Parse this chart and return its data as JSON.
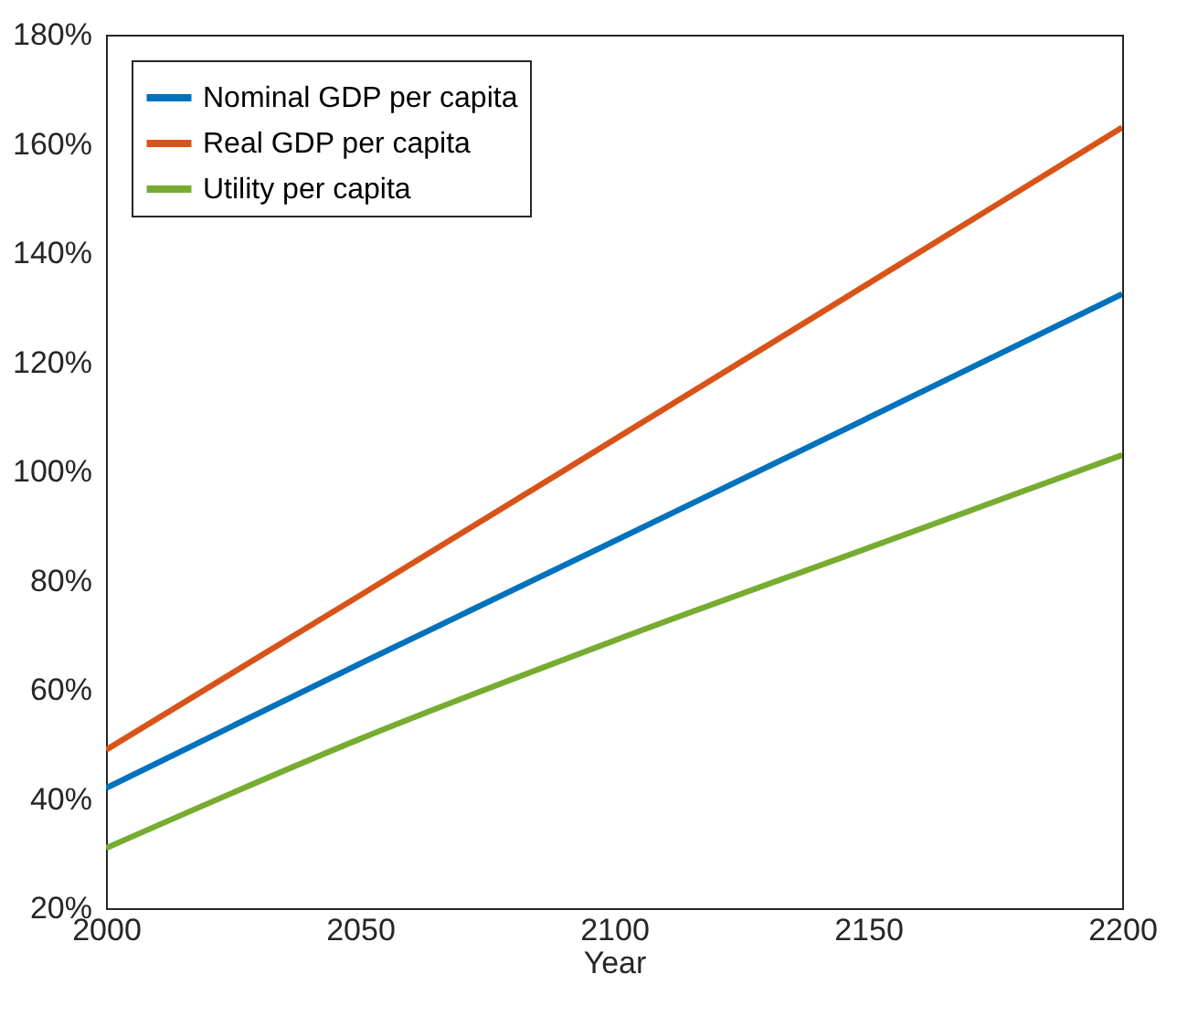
{
  "chart_data": {
    "type": "line",
    "xlabel": "Year",
    "x": [
      2000,
      2050,
      2100,
      2150,
      2200
    ],
    "series": [
      {
        "name": "Nominal GDP per capita",
        "color": "#0072bd",
        "values": [
          42,
          64.8,
          87.2,
          109.8,
          132.5
        ]
      },
      {
        "name": "Real GDP per capita",
        "color": "#d95319",
        "values": [
          49,
          77.3,
          105.8,
          134.4,
          163
        ]
      },
      {
        "name": "Utility per capita",
        "color": "#77ac30",
        "values": [
          31,
          51,
          69,
          86,
          103
        ]
      }
    ],
    "xlim": [
      2000,
      2200
    ],
    "xticks": [
      2000,
      2050,
      2100,
      2150,
      2200
    ],
    "ylim": [
      20,
      180
    ],
    "yticks": [
      {
        "value": 20,
        "label": "20%"
      },
      {
        "value": 40,
        "label": "40%"
      },
      {
        "value": 60,
        "label": "60%"
      },
      {
        "value": 80,
        "label": "80%"
      },
      {
        "value": 100,
        "label": "100%"
      },
      {
        "value": 120,
        "label": "120%"
      },
      {
        "value": 140,
        "label": "140%"
      },
      {
        "value": 160,
        "label": "160%"
      },
      {
        "value": 180,
        "label": "180%"
      }
    ],
    "legend": "top left",
    "grid": false,
    "marker": "none",
    "line_style": "solid"
  }
}
